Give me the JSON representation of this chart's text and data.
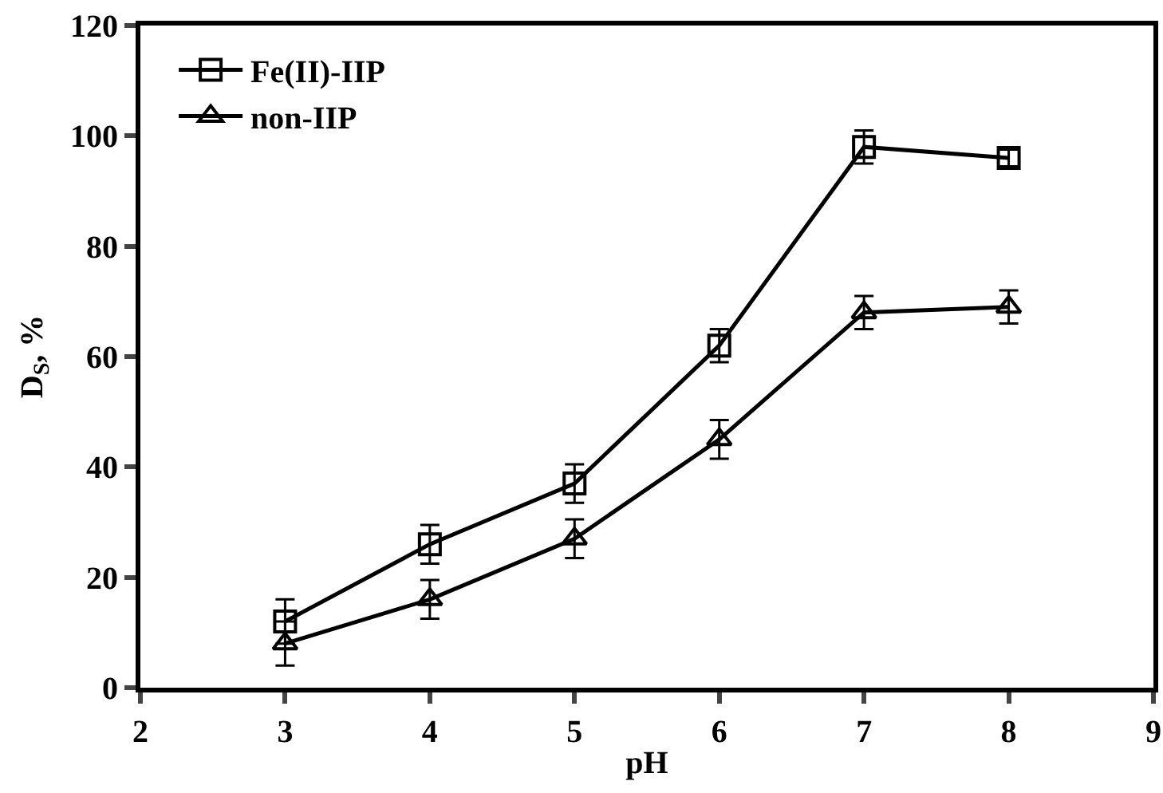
{
  "chart_data": {
    "type": "line",
    "xlabel": "pH",
    "ylabel": "D$_{S}$, %",
    "x": [
      3,
      4,
      5,
      6,
      7,
      8
    ],
    "series": [
      {
        "name": "Fe(II)-IIP",
        "color": "#000000",
        "marker": "square",
        "values": [
          12,
          26,
          37,
          62,
          98,
          96
        ],
        "errors": [
          4,
          3.5,
          3.5,
          3,
          3,
          1.5
        ]
      },
      {
        "name": "non-IIP",
        "color": "#000000",
        "marker": "triangle",
        "values": [
          8,
          16,
          27,
          45,
          68,
          69
        ],
        "errors": [
          4,
          3.5,
          3.5,
          3.5,
          3,
          3
        ]
      }
    ],
    "xlim": [
      2,
      9
    ],
    "xticks": [
      2,
      3,
      4,
      5,
      6,
      7,
      8,
      9
    ],
    "ylim": [
      0,
      120
    ],
    "yticks": [
      0,
      20,
      40,
      60,
      80,
      100,
      120
    ],
    "grid": false,
    "legend": "top left",
    "line_style": "solid"
  }
}
